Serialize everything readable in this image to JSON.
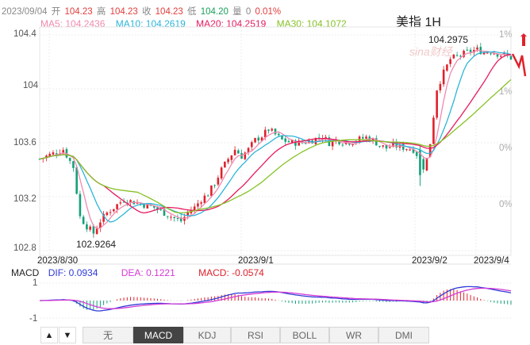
{
  "header": {
    "date": "2023/09/04",
    "open_label": "开",
    "open": "104.23",
    "high_label": "高",
    "high": "104.23",
    "close_label": "收",
    "close": "104.23",
    "low_label": "低",
    "low": "104.20",
    "volume_label": "量",
    "volume": "0",
    "change": "0.01%"
  },
  "ma_legend": {
    "ma5": "MA5: 104.2436",
    "ma10": "MA10: 104.2619",
    "ma20": "MA20: 104.2519",
    "ma30": "MA30: 104.1072"
  },
  "title": "美指 1H",
  "watermark": "sina财经",
  "price_axis": {
    "labels": [
      "104.4",
      "104",
      "103.6",
      "103.2",
      "102.8"
    ]
  },
  "pct_axis": {
    "labels": [
      "1%",
      "1%",
      "0%",
      "0%"
    ]
  },
  "annotations": {
    "high": "104.2975",
    "low": "102.9264"
  },
  "dates": [
    "2023/8/30",
    "2023/9/1",
    "2023/9/2",
    "2023/9/4"
  ],
  "macd_legend": {
    "title": "MACD",
    "dif": "DIF: 0.0934",
    "dea": "DEA: 0.1221",
    "macd": "MACD: -0.0574"
  },
  "macd_axis": {
    "labels": [
      "1",
      "-1"
    ]
  },
  "tabs": [
    {
      "label": "无",
      "active": false
    },
    {
      "label": "MACD",
      "active": true
    },
    {
      "label": "KDJ",
      "active": false
    },
    {
      "label": "RSI",
      "active": false
    },
    {
      "label": "BOLL",
      "active": false
    },
    {
      "label": "WR",
      "active": false
    },
    {
      "label": "DMI",
      "active": false
    }
  ],
  "nav": {
    "up": "▲",
    "down": "▼"
  },
  "colors": {
    "up": "#e0212b",
    "down": "#14a07a",
    "ma5": "#f08ab0",
    "ma10": "#2cb5d9",
    "ma20": "#e8195f",
    "ma30": "#86c226",
    "dif": "#2f3ad6",
    "dea": "#d33ad6",
    "header_up": "#e23c3c",
    "header_down": "#19a05a",
    "header_gray": "#888888"
  },
  "chart_data": {
    "type": "candlestick",
    "title": "美指 1H",
    "ylim": [
      102.8,
      104.4
    ],
    "x_dates": [
      "2023/8/30",
      "2023/9/1",
      "2023/9/2",
      "2023/9/4"
    ],
    "key_points": [
      {
        "label": "high",
        "value": 104.2975
      },
      {
        "label": "low",
        "value": 102.9264
      }
    ],
    "price_path": [
      [
        0,
        103.48
      ],
      [
        4,
        103.52
      ],
      [
        7,
        103.55
      ],
      [
        10,
        103.42
      ],
      [
        12,
        103.05
      ],
      [
        14,
        102.98
      ],
      [
        16,
        102.93
      ],
      [
        18,
        103.02
      ],
      [
        20,
        103.08
      ],
      [
        22,
        103.12
      ],
      [
        25,
        103.18
      ],
      [
        28,
        103.16
      ],
      [
        31,
        103.14
      ],
      [
        34,
        103.12
      ],
      [
        37,
        103.08
      ],
      [
        40,
        103.04
      ],
      [
        42,
        103.02
      ],
      [
        44,
        103.08
      ],
      [
        46,
        103.12
      ],
      [
        48,
        103.18
      ],
      [
        50,
        103.22
      ],
      [
        52,
        103.3
      ],
      [
        54,
        103.4
      ],
      [
        56,
        103.48
      ],
      [
        58,
        103.55
      ],
      [
        60,
        103.5
      ],
      [
        62,
        103.55
      ],
      [
        64,
        103.62
      ],
      [
        66,
        103.65
      ],
      [
        68,
        103.7
      ],
      [
        70,
        103.66
      ],
      [
        72,
        103.62
      ],
      [
        75,
        103.6
      ],
      [
        78,
        103.6
      ],
      [
        81,
        103.62
      ],
      [
        84,
        103.65
      ],
      [
        86,
        103.6
      ],
      [
        88,
        103.62
      ],
      [
        91,
        103.6
      ],
      [
        94,
        103.62
      ],
      [
        97,
        103.64
      ],
      [
        99,
        103.62
      ],
      [
        101,
        103.58
      ],
      [
        103,
        103.56
      ],
      [
        105,
        103.58
      ],
      [
        107,
        103.57
      ],
      [
        109,
        103.56
      ],
      [
        111,
        103.55
      ],
      [
        113,
        103.48
      ],
      [
        114,
        103.42
      ],
      [
        115,
        103.48
      ],
      [
        116,
        103.6
      ],
      [
        118,
        104.0
      ],
      [
        120,
        104.12
      ],
      [
        122,
        104.22
      ],
      [
        124,
        104.24
      ],
      [
        126,
        104.26
      ],
      [
        128,
        104.28
      ],
      [
        130,
        104.29
      ],
      [
        132,
        104.27
      ],
      [
        134,
        104.28
      ],
      [
        136,
        104.26
      ],
      [
        138,
        104.25
      ],
      [
        140,
        104.23
      ]
    ],
    "ma_last": {
      "MA5": 104.2436,
      "MA10": 104.2619,
      "MA20": 104.2519,
      "MA30": 104.1072
    },
    "macd": {
      "DIF": 0.0934,
      "DEA": 0.1221,
      "MACD": -0.0574,
      "ylim": [
        -1.2,
        1.2
      ]
    }
  }
}
